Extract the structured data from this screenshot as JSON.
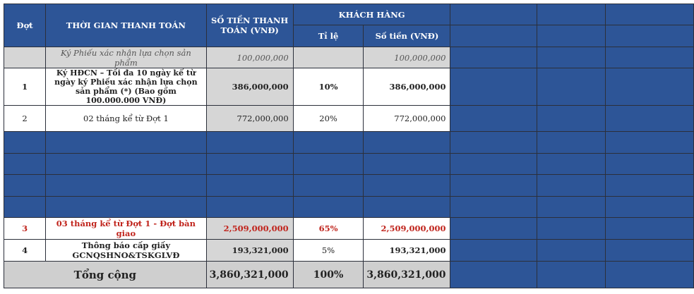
{
  "header": {
    "dot": "Đợt",
    "time": "THỜI GIAN THANH TOÁN",
    "amount": "SỐ TIỀN THANH TOÁN (VNĐ)",
    "customer": "KHÁCH HÀNG",
    "ratio": "Tỉ lệ",
    "customer_amount": "Số tiền (VNĐ)"
  },
  "rows": [
    {
      "dot": "",
      "time": "Ký Phiếu xác nhận lựa chọn sản phẩm",
      "amount": "100,000,000",
      "ratio": "",
      "customer_amount": "100,000,000"
    },
    {
      "dot": "1",
      "time": "Ký HĐCN – Tối đa 10 ngày kể từ ngày ký Phiếu xác nhận lựa chọn sản phẩm (*) (Bao gồm 100.000.000 VNĐ)",
      "amount": "386,000,000",
      "ratio": "10%",
      "customer_amount": "386,000,000"
    },
    {
      "dot": "2",
      "time": "02 tháng kể từ Đợt 1",
      "amount": "772,000,000",
      "ratio": "20%",
      "customer_amount": "772,000,000"
    },
    {
      "dot": "3",
      "time": "03 tháng kể từ Đợt 1 - Đợt bàn giao",
      "amount": "2,509,000,000",
      "ratio": "65%",
      "customer_amount": "2,509,000,000"
    },
    {
      "dot": "4",
      "time": "Thông báo cấp giấy GCNQSHNO&TSKGLVĐ",
      "amount": "193,321,000",
      "ratio": "5%",
      "customer_amount": "193,321,000"
    }
  ],
  "total": {
    "label": "Tổng cộng",
    "amount": "3,860,321,000",
    "ratio": "100%",
    "customer_amount": "3,860,321,000"
  },
  "colors": {
    "header_blue": "#2d5597",
    "grey_cell": "#d6d6d6",
    "red_text": "#c0241c"
  }
}
